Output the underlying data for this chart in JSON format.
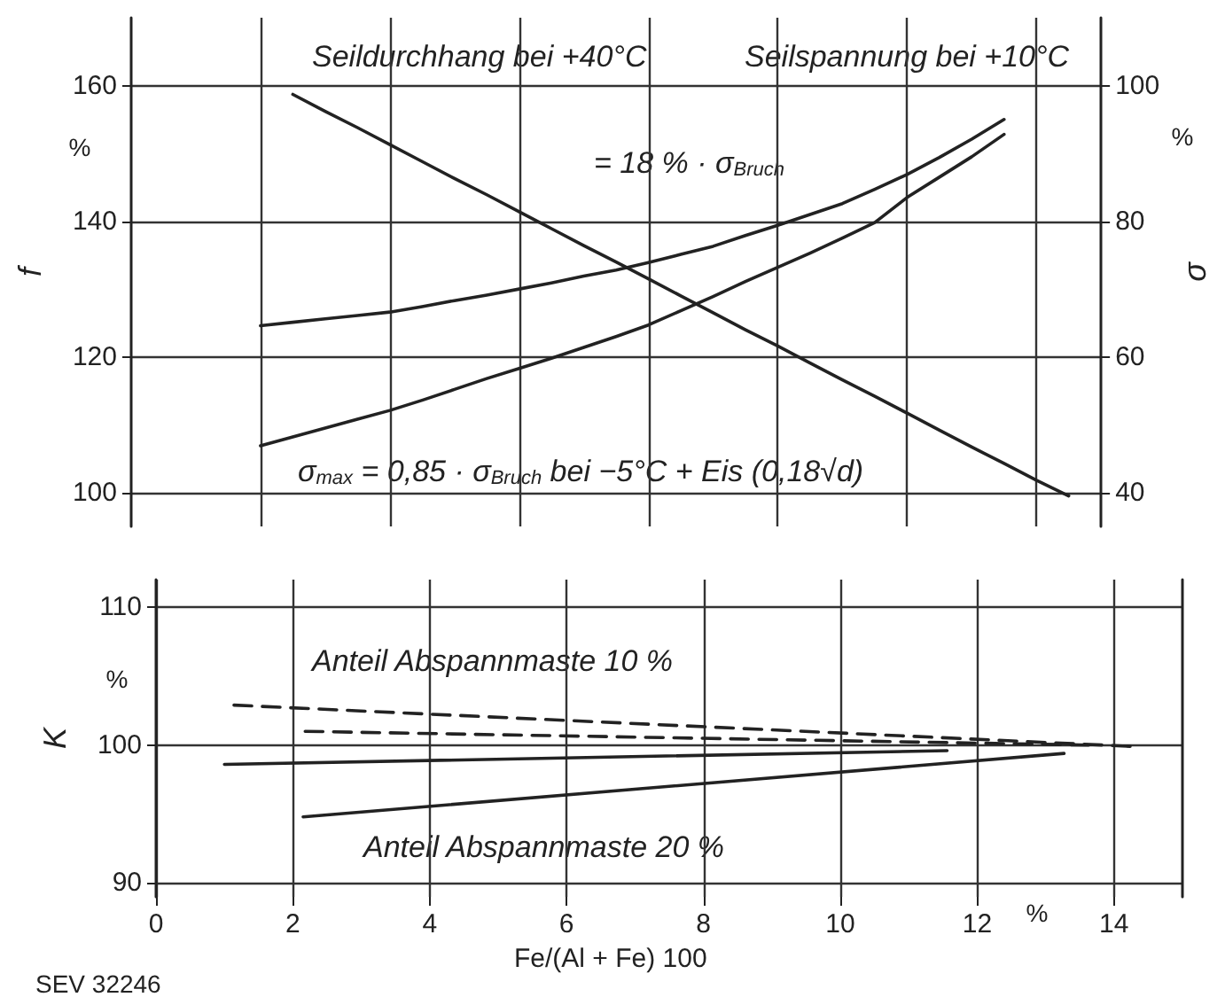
{
  "chart_data": [
    {
      "type": "line",
      "ylabel": "f",
      "y2label": "σ",
      "categories": [
        null,
        null,
        null,
        null,
        null,
        null,
        null,
        null,
        null,
        null,
        null,
        null,
        null,
        null,
        null,
        null,
        null,
        null,
        null,
        null,
        null,
        null,
        null,
        null,
        null,
        null,
        null,
        null,
        null,
        null,
        null
      ],
      "ylim": [
        95,
        170
      ],
      "yticks": [
        100,
        120,
        140,
        160
      ],
      "y2lim": [
        35,
        110
      ],
      "y2ticks": [
        40,
        60,
        80,
        100
      ],
      "tick_labels": "y",
      "grid": true,
      "marker": "none",
      "line_style": "solid",
      "series": [
        {
          "color": "#222222",
          "values": [
            null,
            null,
            null,
            null,
            null,
            158.7,
            156.2,
            153.8,
            151.3,
            148.8,
            146.3,
            143.9,
            141.4,
            138.9,
            136.4,
            134.0,
            131.5,
            129.0,
            126.5,
            124.0,
            121.6,
            119.1,
            116.6,
            114.2,
            111.7,
            109.2,
            106.7,
            104.3,
            101.8,
            99.5,
            null
          ]
        },
        {
          "color": "#222222",
          "axis": "y2",
          "values": [
            null,
            null,
            null,
            null,
            64.6,
            65.1,
            65.6,
            66.1,
            66.6,
            67.4,
            68.3,
            69.1,
            70.0,
            70.9,
            71.9,
            72.8,
            73.9,
            75.1,
            76.3,
            77.9,
            79.4,
            81.0,
            82.6,
            84.7,
            86.9,
            89.4,
            92.1,
            95.0,
            null,
            null,
            null
          ]
        },
        {
          "color": "#222222",
          "axis": "y2",
          "values": [
            null,
            null,
            null,
            null,
            46.9,
            48.2,
            49.5,
            50.8,
            52.1,
            53.6,
            55.2,
            56.8,
            58.3,
            59.8,
            61.4,
            63.0,
            64.7,
            66.8,
            68.9,
            71.1,
            73.2,
            75.3,
            77.5,
            79.8,
            83.5,
            86.5,
            89.5,
            92.8,
            null,
            null,
            null
          ]
        }
      ],
      "annotations": [
        "Seildurchhang bei +40°C",
        "Seilspannung bei +10°C",
        "= 18 % · σ$_{Bruch}$",
        "σ$_{max}$ = 0,85 · σ$_{Bruch}$ bei −5°C + Eis (0,18√d)",
        "%",
        "%"
      ]
    },
    {
      "type": "line",
      "ylabel": "K",
      "xlabel": "Fe/(Al + Fe) 100",
      "xlim": [
        0,
        15
      ],
      "xticks": [
        0,
        2,
        4,
        6,
        8,
        10,
        12,
        14
      ],
      "ylim": [
        89,
        112
      ],
      "yticks": [
        90,
        100,
        110
      ],
      "grid": true,
      "marker": "none",
      "series": [
        {
          "color": "#222222",
          "line_style": "dashed",
          "x": [
            1.14,
            14.3
          ],
          "values": [
            102.9,
            99.9
          ]
        },
        {
          "color": "#222222",
          "line_style": "dashed",
          "x": [
            2.18,
            13.7
          ],
          "values": [
            101.0,
            100.0
          ]
        },
        {
          "color": "#222222",
          "line_style": "solid",
          "x": [
            1.0,
            11.56
          ],
          "values": [
            98.6,
            99.6
          ]
        },
        {
          "color": "#222222",
          "line_style": "solid",
          "x": [
            2.15,
            13.27
          ],
          "values": [
            94.8,
            99.4
          ]
        }
      ],
      "annotations": [
        "Anteil Abspannmaste 10 %",
        "Anteil Abspannmaste 20 %",
        "%",
        "%",
        "SEV 32246"
      ]
    }
  ]
}
